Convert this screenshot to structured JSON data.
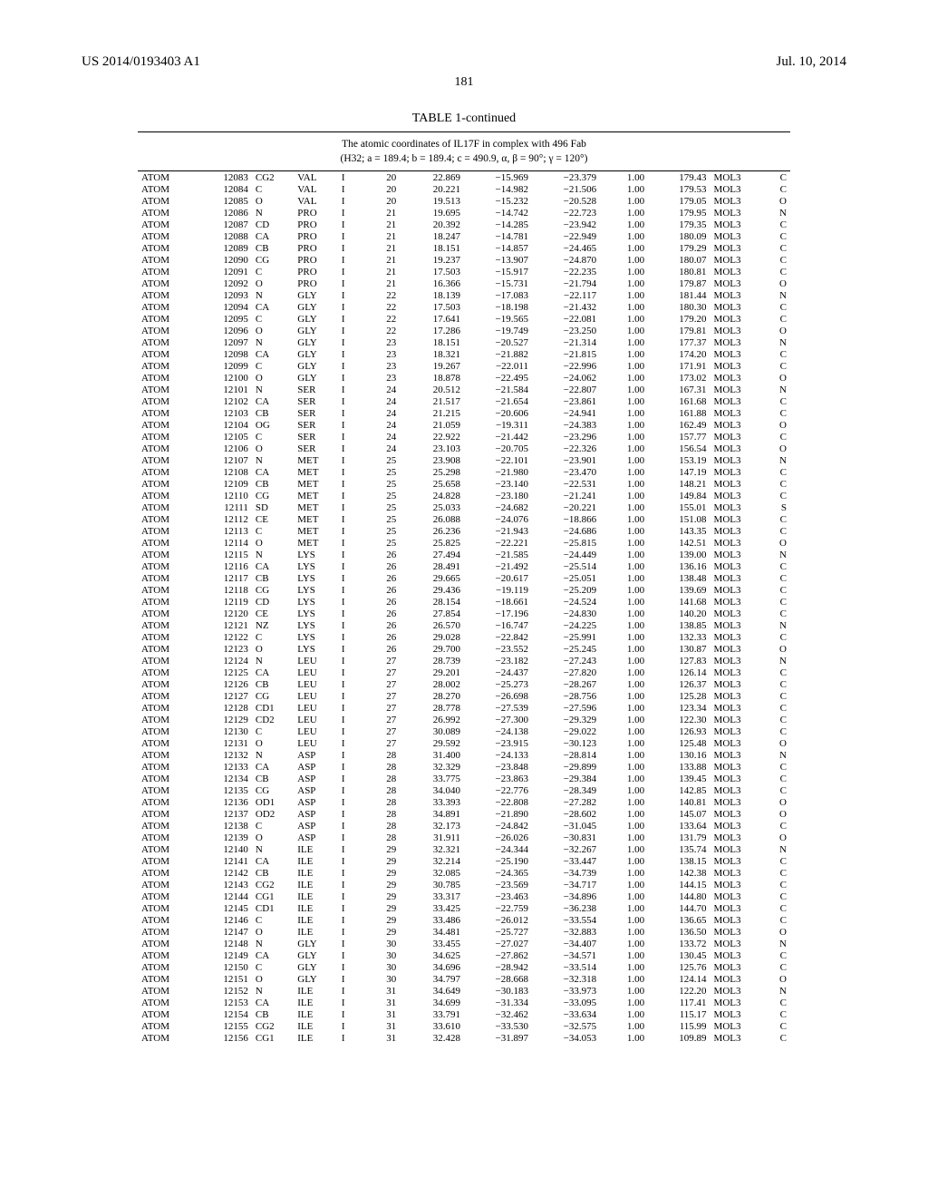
{
  "header": {
    "left": "US 2014/0193403 A1",
    "right": "Jul. 10, 2014"
  },
  "page_number": "181",
  "table": {
    "title": "TABLE 1-continued",
    "subtitle": "The atomic coordinates of IL17F in complex with 496 Fab\n(H32; a = 189.4; b = 189.4; c = 490.9, α, β = 90°; γ = 120°)",
    "rows": [
      [
        "ATOM",
        "12083",
        "CG2",
        "VAL",
        "I",
        "20",
        "22.869",
        "−15.969",
        "−23.379",
        "1.00",
        "179.43",
        "MOL3",
        "C"
      ],
      [
        "ATOM",
        "12084",
        "C",
        "VAL",
        "I",
        "20",
        "20.221",
        "−14.982",
        "−21.506",
        "1.00",
        "179.53",
        "MOL3",
        "C"
      ],
      [
        "ATOM",
        "12085",
        "O",
        "VAL",
        "I",
        "20",
        "19.513",
        "−15.232",
        "−20.528",
        "1.00",
        "179.05",
        "MOL3",
        "O"
      ],
      [
        "ATOM",
        "12086",
        "N",
        "PRO",
        "I",
        "21",
        "19.695",
        "−14.742",
        "−22.723",
        "1.00",
        "179.95",
        "MOL3",
        "N"
      ],
      [
        "ATOM",
        "12087",
        "CD",
        "PRO",
        "I",
        "21",
        "20.392",
        "−14.285",
        "−23.942",
        "1.00",
        "179.35",
        "MOL3",
        "C"
      ],
      [
        "ATOM",
        "12088",
        "CA",
        "PRO",
        "I",
        "21",
        "18.247",
        "−14.781",
        "−22.949",
        "1.00",
        "180.09",
        "MOL3",
        "C"
      ],
      [
        "ATOM",
        "12089",
        "CB",
        "PRO",
        "I",
        "21",
        "18.151",
        "−14.857",
        "−24.465",
        "1.00",
        "179.29",
        "MOL3",
        "C"
      ],
      [
        "ATOM",
        "12090",
        "CG",
        "PRO",
        "I",
        "21",
        "19.237",
        "−13.907",
        "−24.870",
        "1.00",
        "180.07",
        "MOL3",
        "C"
      ],
      [
        "ATOM",
        "12091",
        "C",
        "PRO",
        "I",
        "21",
        "17.503",
        "−15.917",
        "−22.235",
        "1.00",
        "180.81",
        "MOL3",
        "C"
      ],
      [
        "ATOM",
        "12092",
        "O",
        "PRO",
        "I",
        "21",
        "16.366",
        "−15.731",
        "−21.794",
        "1.00",
        "179.87",
        "MOL3",
        "O"
      ],
      [
        "ATOM",
        "12093",
        "N",
        "GLY",
        "I",
        "22",
        "18.139",
        "−17.083",
        "−22.117",
        "1.00",
        "181.44",
        "MOL3",
        "N"
      ],
      [
        "ATOM",
        "12094",
        "CA",
        "GLY",
        "I",
        "22",
        "17.503",
        "−18.198",
        "−21.432",
        "1.00",
        "180.30",
        "MOL3",
        "C"
      ],
      [
        "ATOM",
        "12095",
        "C",
        "GLY",
        "I",
        "22",
        "17.641",
        "−19.565",
        "−22.081",
        "1.00",
        "179.20",
        "MOL3",
        "C"
      ],
      [
        "ATOM",
        "12096",
        "O",
        "GLY",
        "I",
        "22",
        "17.286",
        "−19.749",
        "−23.250",
        "1.00",
        "179.81",
        "MOL3",
        "O"
      ],
      [
        "ATOM",
        "12097",
        "N",
        "GLY",
        "I",
        "23",
        "18.151",
        "−20.527",
        "−21.314",
        "1.00",
        "177.37",
        "MOL3",
        "N"
      ],
      [
        "ATOM",
        "12098",
        "CA",
        "GLY",
        "I",
        "23",
        "18.321",
        "−21.882",
        "−21.815",
        "1.00",
        "174.20",
        "MOL3",
        "C"
      ],
      [
        "ATOM",
        "12099",
        "C",
        "GLY",
        "I",
        "23",
        "19.267",
        "−22.011",
        "−22.996",
        "1.00",
        "171.91",
        "MOL3",
        "C"
      ],
      [
        "ATOM",
        "12100",
        "O",
        "GLY",
        "I",
        "23",
        "18.878",
        "−22.495",
        "−24.062",
        "1.00",
        "173.02",
        "MOL3",
        "O"
      ],
      [
        "ATOM",
        "12101",
        "N",
        "SER",
        "I",
        "24",
        "20.512",
        "−21.584",
        "−22.807",
        "1.00",
        "167.31",
        "MOL3",
        "N"
      ],
      [
        "ATOM",
        "12102",
        "CA",
        "SER",
        "I",
        "24",
        "21.517",
        "−21.654",
        "−23.861",
        "1.00",
        "161.68",
        "MOL3",
        "C"
      ],
      [
        "ATOM",
        "12103",
        "CB",
        "SER",
        "I",
        "24",
        "21.215",
        "−20.606",
        "−24.941",
        "1.00",
        "161.88",
        "MOL3",
        "C"
      ],
      [
        "ATOM",
        "12104",
        "OG",
        "SER",
        "I",
        "24",
        "21.059",
        "−19.311",
        "−24.383",
        "1.00",
        "162.49",
        "MOL3",
        "O"
      ],
      [
        "ATOM",
        "12105",
        "C",
        "SER",
        "I",
        "24",
        "22.922",
        "−21.442",
        "−23.296",
        "1.00",
        "157.77",
        "MOL3",
        "C"
      ],
      [
        "ATOM",
        "12106",
        "O",
        "SER",
        "I",
        "24",
        "23.103",
        "−20.705",
        "−22.326",
        "1.00",
        "156.54",
        "MOL3",
        "O"
      ],
      [
        "ATOM",
        "12107",
        "N",
        "MET",
        "I",
        "25",
        "23.908",
        "−22.101",
        "−23.901",
        "1.00",
        "153.19",
        "MOL3",
        "N"
      ],
      [
        "ATOM",
        "12108",
        "CA",
        "MET",
        "I",
        "25",
        "25.298",
        "−21.980",
        "−23.470",
        "1.00",
        "147.19",
        "MOL3",
        "C"
      ],
      [
        "ATOM",
        "12109",
        "CB",
        "MET",
        "I",
        "25",
        "25.658",
        "−23.140",
        "−22.531",
        "1.00",
        "148.21",
        "MOL3",
        "C"
      ],
      [
        "ATOM",
        "12110",
        "CG",
        "MET",
        "I",
        "25",
        "24.828",
        "−23.180",
        "−21.241",
        "1.00",
        "149.84",
        "MOL3",
        "C"
      ],
      [
        "ATOM",
        "12111",
        "SD",
        "MET",
        "I",
        "25",
        "25.033",
        "−24.682",
        "−20.221",
        "1.00",
        "155.01",
        "MOL3",
        "S"
      ],
      [
        "ATOM",
        "12112",
        "CE",
        "MET",
        "I",
        "25",
        "26.088",
        "−24.076",
        "−18.866",
        "1.00",
        "151.08",
        "MOL3",
        "C"
      ],
      [
        "ATOM",
        "12113",
        "C",
        "MET",
        "I",
        "25",
        "26.236",
        "−21.943",
        "−24.686",
        "1.00",
        "143.35",
        "MOL3",
        "C"
      ],
      [
        "ATOM",
        "12114",
        "O",
        "MET",
        "I",
        "25",
        "25.825",
        "−22.221",
        "−25.815",
        "1.00",
        "142.51",
        "MOL3",
        "O"
      ],
      [
        "ATOM",
        "12115",
        "N",
        "LYS",
        "I",
        "26",
        "27.494",
        "−21.585",
        "−24.449",
        "1.00",
        "139.00",
        "MOL3",
        "N"
      ],
      [
        "ATOM",
        "12116",
        "CA",
        "LYS",
        "I",
        "26",
        "28.491",
        "−21.492",
        "−25.514",
        "1.00",
        "136.16",
        "MOL3",
        "C"
      ],
      [
        "ATOM",
        "12117",
        "CB",
        "LYS",
        "I",
        "26",
        "29.665",
        "−20.617",
        "−25.051",
        "1.00",
        "138.48",
        "MOL3",
        "C"
      ],
      [
        "ATOM",
        "12118",
        "CG",
        "LYS",
        "I",
        "26",
        "29.436",
        "−19.119",
        "−25.209",
        "1.00",
        "139.69",
        "MOL3",
        "C"
      ],
      [
        "ATOM",
        "12119",
        "CD",
        "LYS",
        "I",
        "26",
        "28.154",
        "−18.661",
        "−24.524",
        "1.00",
        "141.68",
        "MOL3",
        "C"
      ],
      [
        "ATOM",
        "12120",
        "CE",
        "LYS",
        "I",
        "26",
        "27.854",
        "−17.196",
        "−24.830",
        "1.00",
        "140.20",
        "MOL3",
        "C"
      ],
      [
        "ATOM",
        "12121",
        "NZ",
        "LYS",
        "I",
        "26",
        "26.570",
        "−16.747",
        "−24.225",
        "1.00",
        "138.85",
        "MOL3",
        "N"
      ],
      [
        "ATOM",
        "12122",
        "C",
        "LYS",
        "I",
        "26",
        "29.028",
        "−22.842",
        "−25.991",
        "1.00",
        "132.33",
        "MOL3",
        "C"
      ],
      [
        "ATOM",
        "12123",
        "O",
        "LYS",
        "I",
        "26",
        "29.700",
        "−23.552",
        "−25.245",
        "1.00",
        "130.87",
        "MOL3",
        "O"
      ],
      [
        "ATOM",
        "12124",
        "N",
        "LEU",
        "I",
        "27",
        "28.739",
        "−23.182",
        "−27.243",
        "1.00",
        "127.83",
        "MOL3",
        "N"
      ],
      [
        "ATOM",
        "12125",
        "CA",
        "LEU",
        "I",
        "27",
        "29.201",
        "−24.437",
        "−27.820",
        "1.00",
        "126.14",
        "MOL3",
        "C"
      ],
      [
        "ATOM",
        "12126",
        "CB",
        "LEU",
        "I",
        "27",
        "28.002",
        "−25.273",
        "−28.267",
        "1.00",
        "126.37",
        "MOL3",
        "C"
      ],
      [
        "ATOM",
        "12127",
        "CG",
        "LEU",
        "I",
        "27",
        "28.270",
        "−26.698",
        "−28.756",
        "1.00",
        "125.28",
        "MOL3",
        "C"
      ],
      [
        "ATOM",
        "12128",
        "CD1",
        "LEU",
        "I",
        "27",
        "28.778",
        "−27.539",
        "−27.596",
        "1.00",
        "123.34",
        "MOL3",
        "C"
      ],
      [
        "ATOM",
        "12129",
        "CD2",
        "LEU",
        "I",
        "27",
        "26.992",
        "−27.300",
        "−29.329",
        "1.00",
        "122.30",
        "MOL3",
        "C"
      ],
      [
        "ATOM",
        "12130",
        "C",
        "LEU",
        "I",
        "27",
        "30.089",
        "−24.138",
        "−29.022",
        "1.00",
        "126.93",
        "MOL3",
        "C"
      ],
      [
        "ATOM",
        "12131",
        "O",
        "LEU",
        "I",
        "27",
        "29.592",
        "−23.915",
        "−30.123",
        "1.00",
        "125.48",
        "MOL3",
        "O"
      ],
      [
        "ATOM",
        "12132",
        "N",
        "ASP",
        "I",
        "28",
        "31.400",
        "−24.133",
        "−28.814",
        "1.00",
        "130.16",
        "MOL3",
        "N"
      ],
      [
        "ATOM",
        "12133",
        "CA",
        "ASP",
        "I",
        "28",
        "32.329",
        "−23.848",
        "−29.899",
        "1.00",
        "133.88",
        "MOL3",
        "C"
      ],
      [
        "ATOM",
        "12134",
        "CB",
        "ASP",
        "I",
        "28",
        "33.775",
        "−23.863",
        "−29.384",
        "1.00",
        "139.45",
        "MOL3",
        "C"
      ],
      [
        "ATOM",
        "12135",
        "CG",
        "ASP",
        "I",
        "28",
        "34.040",
        "−22.776",
        "−28.349",
        "1.00",
        "142.85",
        "MOL3",
        "C"
      ],
      [
        "ATOM",
        "12136",
        "OD1",
        "ASP",
        "I",
        "28",
        "33.393",
        "−22.808",
        "−27.282",
        "1.00",
        "140.81",
        "MOL3",
        "O"
      ],
      [
        "ATOM",
        "12137",
        "OD2",
        "ASP",
        "I",
        "28",
        "34.891",
        "−21.890",
        "−28.602",
        "1.00",
        "145.07",
        "MOL3",
        "O"
      ],
      [
        "ATOM",
        "12138",
        "C",
        "ASP",
        "I",
        "28",
        "32.173",
        "−24.842",
        "−31.045",
        "1.00",
        "133.64",
        "MOL3",
        "C"
      ],
      [
        "ATOM",
        "12139",
        "O",
        "ASP",
        "I",
        "28",
        "31.911",
        "−26.026",
        "−30.831",
        "1.00",
        "131.79",
        "MOL3",
        "O"
      ],
      [
        "ATOM",
        "12140",
        "N",
        "ILE",
        "I",
        "29",
        "32.321",
        "−24.344",
        "−32.267",
        "1.00",
        "135.74",
        "MOL3",
        "N"
      ],
      [
        "ATOM",
        "12141",
        "CA",
        "ILE",
        "I",
        "29",
        "32.214",
        "−25.190",
        "−33.447",
        "1.00",
        "138.15",
        "MOL3",
        "C"
      ],
      [
        "ATOM",
        "12142",
        "CB",
        "ILE",
        "I",
        "29",
        "32.085",
        "−24.365",
        "−34.739",
        "1.00",
        "142.38",
        "MOL3",
        "C"
      ],
      [
        "ATOM",
        "12143",
        "CG2",
        "ILE",
        "I",
        "29",
        "30.785",
        "−23.569",
        "−34.717",
        "1.00",
        "144.15",
        "MOL3",
        "C"
      ],
      [
        "ATOM",
        "12144",
        "CG1",
        "ILE",
        "I",
        "29",
        "33.317",
        "−23.463",
        "−34.896",
        "1.00",
        "144.80",
        "MOL3",
        "C"
      ],
      [
        "ATOM",
        "12145",
        "CD1",
        "ILE",
        "I",
        "29",
        "33.425",
        "−22.759",
        "−36.238",
        "1.00",
        "144.70",
        "MOL3",
        "C"
      ],
      [
        "ATOM",
        "12146",
        "C",
        "ILE",
        "I",
        "29",
        "33.486",
        "−26.012",
        "−33.554",
        "1.00",
        "136.65",
        "MOL3",
        "C"
      ],
      [
        "ATOM",
        "12147",
        "O",
        "ILE",
        "I",
        "29",
        "34.481",
        "−25.727",
        "−32.883",
        "1.00",
        "136.50",
        "MOL3",
        "O"
      ],
      [
        "ATOM",
        "12148",
        "N",
        "GLY",
        "I",
        "30",
        "33.455",
        "−27.027",
        "−34.407",
        "1.00",
        "133.72",
        "MOL3",
        "N"
      ],
      [
        "ATOM",
        "12149",
        "CA",
        "GLY",
        "I",
        "30",
        "34.625",
        "−27.862",
        "−34.571",
        "1.00",
        "130.45",
        "MOL3",
        "C"
      ],
      [
        "ATOM",
        "12150",
        "C",
        "GLY",
        "I",
        "30",
        "34.696",
        "−28.942",
        "−33.514",
        "1.00",
        "125.76",
        "MOL3",
        "C"
      ],
      [
        "ATOM",
        "12151",
        "O",
        "GLY",
        "I",
        "30",
        "34.797",
        "−28.668",
        "−32.318",
        "1.00",
        "124.14",
        "MOL3",
        "O"
      ],
      [
        "ATOM",
        "12152",
        "N",
        "ILE",
        "I",
        "31",
        "34.649",
        "−30.183",
        "−33.973",
        "1.00",
        "122.20",
        "MOL3",
        "N"
      ],
      [
        "ATOM",
        "12153",
        "CA",
        "ILE",
        "I",
        "31",
        "34.699",
        "−31.334",
        "−33.095",
        "1.00",
        "117.41",
        "MOL3",
        "C"
      ],
      [
        "ATOM",
        "12154",
        "CB",
        "ILE",
        "I",
        "31",
        "33.791",
        "−32.462",
        "−33.634",
        "1.00",
        "115.17",
        "MOL3",
        "C"
      ],
      [
        "ATOM",
        "12155",
        "CG2",
        "ILE",
        "I",
        "31",
        "33.610",
        "−33.530",
        "−32.575",
        "1.00",
        "115.99",
        "MOL3",
        "C"
      ],
      [
        "ATOM",
        "12156",
        "CG1",
        "ILE",
        "I",
        "31",
        "32.428",
        "−31.897",
        "−34.053",
        "1.00",
        "109.89",
        "MOL3",
        "C"
      ]
    ]
  }
}
